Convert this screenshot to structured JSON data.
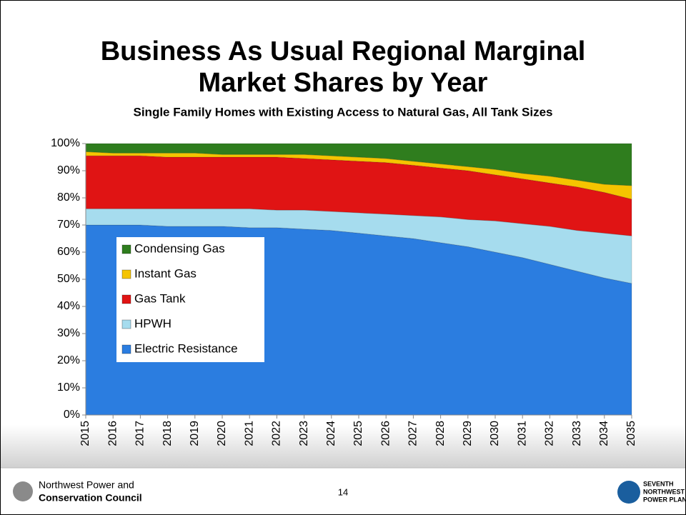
{
  "chart_data": {
    "type": "stacked-area",
    "title": "Business As Usual Regional Marginal Market Shares by Year",
    "subtitle": "Single Family Homes with Existing Access to Natural Gas, All Tank Sizes",
    "x": [
      2015,
      2016,
      2017,
      2018,
      2019,
      2020,
      2021,
      2022,
      2023,
      2024,
      2025,
      2026,
      2027,
      2028,
      2029,
      2030,
      2031,
      2032,
      2033,
      2034,
      2035
    ],
    "xlim": [
      2015,
      2035
    ],
    "series": [
      {
        "name": "Electric Resistance",
        "color": "#2b7de0",
        "values": [
          70,
          70,
          70,
          69.5,
          69.5,
          69.5,
          69,
          69,
          68.5,
          68,
          67,
          66,
          65,
          63.5,
          62,
          60,
          58,
          55.5,
          53,
          50.5,
          48.5
        ]
      },
      {
        "name": "HPWH",
        "color": "#a6dcee",
        "values": [
          6,
          6,
          6,
          6.5,
          6.5,
          6.5,
          7,
          6.5,
          7,
          7,
          7.5,
          8,
          8.5,
          9.5,
          10,
          11.5,
          12.5,
          14,
          15,
          16.5,
          17.5
        ]
      },
      {
        "name": "Gas Tank",
        "color": "#e01414",
        "values": [
          19.5,
          19.5,
          19.5,
          19,
          19,
          19,
          19,
          19.5,
          19,
          19,
          19,
          19,
          18.5,
          18,
          18,
          17,
          16.5,
          16,
          16,
          15,
          13.5
        ]
      },
      {
        "name": "Instant Gas",
        "color": "#f5c400",
        "values": [
          1.5,
          1,
          1,
          1.5,
          1.5,
          1,
          1,
          1,
          1.5,
          1.5,
          1.5,
          1.5,
          1.5,
          1.5,
          1.5,
          2,
          2,
          2.5,
          2.5,
          3,
          5
        ]
      },
      {
        "name": "Condensing Gas",
        "color": "#2f7d1e",
        "values": [
          3,
          3.5,
          3.5,
          3.5,
          3.5,
          4,
          4,
          4,
          4,
          4.5,
          5,
          5.5,
          6.5,
          7.5,
          8.5,
          9.5,
          11,
          12,
          13.5,
          15,
          15.5
        ]
      }
    ],
    "ylim": [
      0,
      100
    ],
    "yticks": [
      {
        "value": 0,
        "label": "0%"
      },
      {
        "value": 10,
        "label": "10%"
      },
      {
        "value": 20,
        "label": "20%"
      },
      {
        "value": 30,
        "label": "30%"
      },
      {
        "value": 40,
        "label": "40%"
      },
      {
        "value": 50,
        "label": "50%"
      },
      {
        "value": 60,
        "label": "60%"
      },
      {
        "value": 70,
        "label": "70%"
      },
      {
        "value": 80,
        "label": "80%"
      },
      {
        "value": 90,
        "label": "90%"
      },
      {
        "value": 100,
        "label": "100%"
      }
    ]
  },
  "footer": {
    "org_line1": "Northwest Power and",
    "org_line2": "Conservation Council",
    "page": "14",
    "plan_line1": "SEVENTH",
    "plan_line2": "NORTHWEST",
    "plan_line3": "POWER PLAN"
  }
}
